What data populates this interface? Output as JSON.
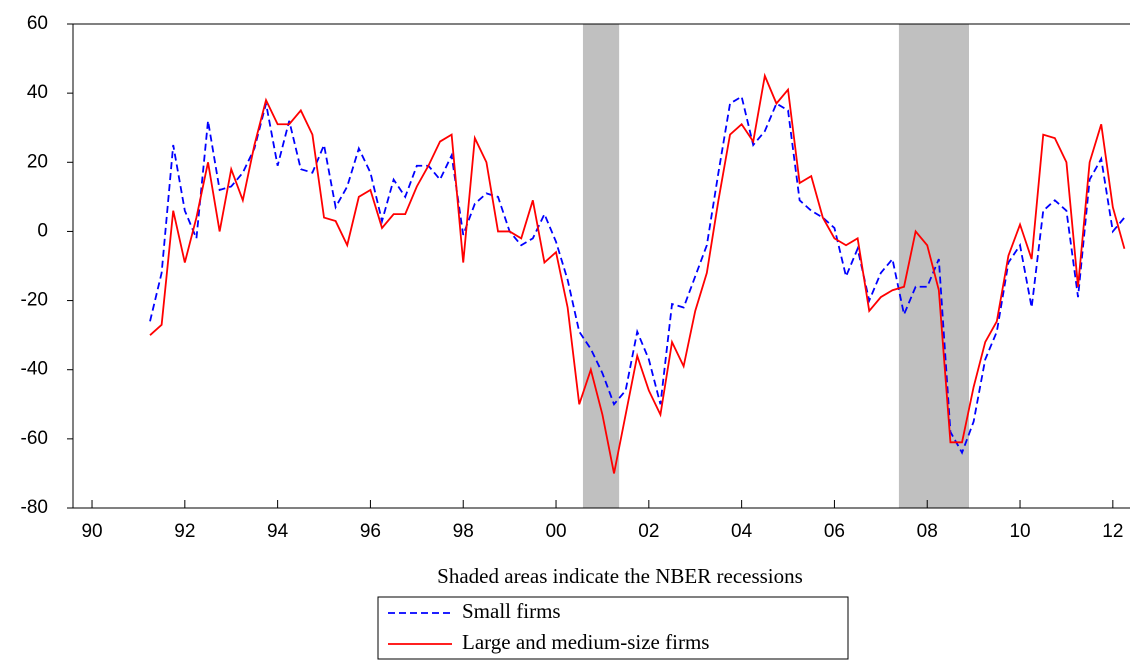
{
  "chart_data": {
    "type": "line",
    "caption": "Shaded areas indicate the NBER recessions",
    "x": [
      1991.25,
      1991.5,
      1991.75,
      1992,
      1992.25,
      1992.5,
      1992.75,
      1993,
      1993.25,
      1993.5,
      1993.75,
      1994,
      1994.25,
      1994.5,
      1994.75,
      1995,
      1995.25,
      1995.5,
      1995.75,
      1996,
      1996.25,
      1996.5,
      1996.75,
      1997,
      1997.25,
      1997.5,
      1997.75,
      1998,
      1998.25,
      1998.5,
      1998.75,
      1999,
      1999.25,
      1999.5,
      1999.75,
      2000,
      2000.25,
      2000.5,
      2000.75,
      2001,
      2001.25,
      2001.5,
      2001.75,
      2002,
      2002.25,
      2002.5,
      2002.75,
      2003,
      2003.25,
      2003.5,
      2003.75,
      2004,
      2004.25,
      2004.5,
      2004.75,
      2005,
      2005.25,
      2005.5,
      2005.75,
      2006,
      2006.25,
      2006.5,
      2006.75,
      2007,
      2007.25,
      2007.5,
      2007.75,
      2008,
      2008.25,
      2008.5,
      2008.75,
      2009,
      2009.25,
      2009.5,
      2009.75,
      2010,
      2010.25,
      2010.5,
      2010.75,
      2011,
      2011.25,
      2011.5,
      2011.75,
      2012,
      2012.25
    ],
    "series": [
      {
        "name": "Small firms",
        "color": "#0000ff",
        "dashed": true,
        "values": [
          -26,
          -12,
          25,
          6,
          -2,
          32,
          12,
          13,
          17,
          24,
          37,
          19,
          32,
          18,
          17,
          25,
          7,
          13,
          24,
          17,
          3,
          15,
          10,
          19,
          19,
          15,
          22,
          -1,
          8,
          11,
          10,
          0,
          -4,
          -2,
          5,
          -3,
          -14,
          -29,
          -34,
          -41,
          -50,
          -46,
          -29,
          -37,
          -50,
          -21,
          -22,
          -13,
          -4,
          17,
          37,
          39,
          25,
          29,
          37,
          35,
          9,
          6,
          4,
          1,
          -13,
          -5,
          -20,
          -12,
          -8,
          -24,
          -16,
          -16,
          -8,
          -58,
          -64,
          -55,
          -37,
          -29,
          -9,
          -4,
          -22,
          6,
          9,
          6,
          -19,
          15,
          21,
          0,
          4
        ]
      },
      {
        "name": "Large and medium-size firms",
        "color": "#ff0000",
        "dashed": false,
        "values": [
          -30,
          -27,
          6,
          -9,
          4,
          20,
          0,
          18,
          9,
          25,
          38,
          31,
          31,
          35,
          28,
          4,
          3,
          -4,
          10,
          12,
          1,
          5,
          5,
          13,
          19,
          26,
          28,
          -9,
          27,
          20,
          0,
          0,
          -2,
          9,
          -9,
          -6,
          -22,
          -50,
          -40,
          -53,
          -70,
          -53,
          -36,
          -46,
          -53,
          -32,
          -39,
          -23,
          -12,
          9,
          28,
          31,
          26,
          45,
          37,
          41,
          14,
          16,
          4,
          -2,
          -4,
          -2,
          -23,
          -19,
          -17,
          -16,
          0,
          -4,
          -17,
          -61,
          -61,
          -45,
          -32,
          -26,
          -7,
          2,
          -8,
          28,
          27,
          20,
          -16,
          20,
          31,
          7,
          -5
        ]
      }
    ],
    "shaded": [
      [
        2000.58,
        2001.36
      ],
      [
        2007.39,
        2008.9
      ]
    ],
    "shade_color": "#c0c0c0",
    "xlim": [
      1989.59,
      2012.37
    ],
    "xticks": [
      {
        "value": 1990,
        "label": "90"
      },
      {
        "value": 1992,
        "label": "92"
      },
      {
        "value": 1994,
        "label": "94"
      },
      {
        "value": 1996,
        "label": "96"
      },
      {
        "value": 1998,
        "label": "98"
      },
      {
        "value": 2000,
        "label": "00"
      },
      {
        "value": 2002,
        "label": "02"
      },
      {
        "value": 2004,
        "label": "04"
      },
      {
        "value": 2006,
        "label": "06"
      },
      {
        "value": 2008,
        "label": "08"
      },
      {
        "value": 2010,
        "label": "10"
      },
      {
        "value": 2012,
        "label": "12"
      }
    ],
    "ylim": [
      -80,
      60
    ],
    "yticks": [
      -80,
      -60,
      -40,
      -20,
      0,
      20,
      40,
      60
    ]
  }
}
